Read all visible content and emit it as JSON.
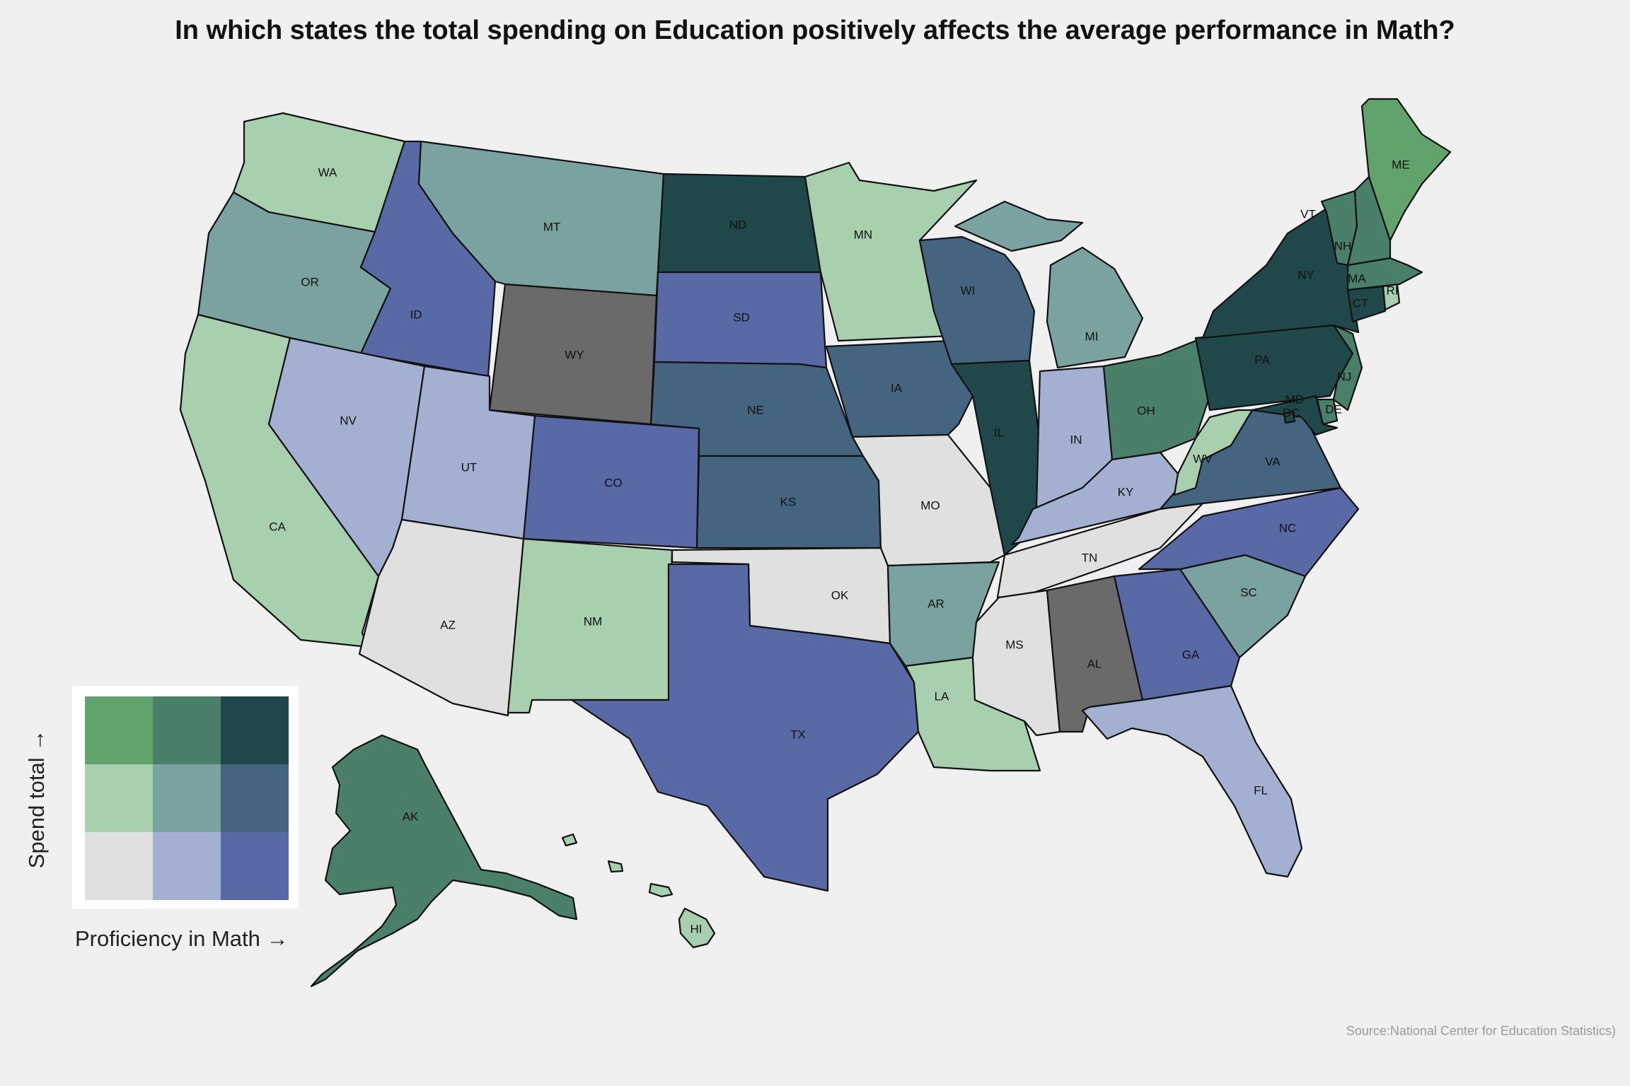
{
  "title": "In which states the total spending on Education positively affects the average performance in Math?",
  "source": "Source:National Center for Education Statistics)",
  "legend": {
    "x_label": "Proficiency in Math →",
    "y_label": "Spend total →",
    "rows": [
      [
        "#62a26c",
        "#4a7f69",
        "#20484a"
      ],
      [
        "#a8cfae",
        "#7aa2a0",
        "#456480"
      ],
      [
        "#e0e0e0",
        "#a4b0d2",
        "#5869a6"
      ]
    ]
  },
  "colors": {
    "hi_low": "#62a26c",
    "hi_mid": "#4a7f69",
    "hi_high": "#20484a",
    "mid_low": "#a8cfae",
    "mid_mid": "#7aa2a0",
    "mid_high": "#456480",
    "low_low": "#e0e0e0",
    "low_mid": "#a4b0d2",
    "low_high": "#5869a6",
    "na": "#6a6a6a"
  },
  "states": [
    {
      "id": "WA",
      "label": "WA",
      "class": "mid_low"
    },
    {
      "id": "OR",
      "label": "OR",
      "class": "mid_mid"
    },
    {
      "id": "CA",
      "label": "CA",
      "class": "mid_low"
    },
    {
      "id": "ID",
      "label": "ID",
      "class": "low_high"
    },
    {
      "id": "NV",
      "label": "NV",
      "class": "low_mid"
    },
    {
      "id": "MT",
      "label": "MT",
      "class": "mid_mid"
    },
    {
      "id": "WY",
      "label": "WY",
      "class": "na"
    },
    {
      "id": "UT",
      "label": "UT",
      "class": "low_mid"
    },
    {
      "id": "AZ",
      "label": "AZ",
      "class": "low_low"
    },
    {
      "id": "CO",
      "label": "CO",
      "class": "low_high"
    },
    {
      "id": "NM",
      "label": "NM",
      "class": "mid_low"
    },
    {
      "id": "ND",
      "label": "ND",
      "class": "hi_high"
    },
    {
      "id": "SD",
      "label": "SD",
      "class": "low_high"
    },
    {
      "id": "NE",
      "label": "NE",
      "class": "mid_high"
    },
    {
      "id": "KS",
      "label": "KS",
      "class": "mid_high"
    },
    {
      "id": "OK",
      "label": "OK",
      "class": "low_low"
    },
    {
      "id": "TX",
      "label": "TX",
      "class": "low_high"
    },
    {
      "id": "MN",
      "label": "MN",
      "class": "mid_low"
    },
    {
      "id": "IA",
      "label": "IA",
      "class": "mid_high"
    },
    {
      "id": "MO",
      "label": "MO",
      "class": "low_low"
    },
    {
      "id": "AR",
      "label": "AR",
      "class": "mid_mid"
    },
    {
      "id": "LA",
      "label": "LA",
      "class": "mid_low"
    },
    {
      "id": "WI",
      "label": "WI",
      "class": "mid_high"
    },
    {
      "id": "IL",
      "label": "IL",
      "class": "hi_high"
    },
    {
      "id": "MI",
      "label": "MI",
      "class": "mid_mid"
    },
    {
      "id": "IN",
      "label": "IN",
      "class": "low_mid"
    },
    {
      "id": "OH",
      "label": "OH",
      "class": "hi_mid"
    },
    {
      "id": "KY",
      "label": "KY",
      "class": "low_mid"
    },
    {
      "id": "TN",
      "label": "TN",
      "class": "low_low"
    },
    {
      "id": "MS",
      "label": "MS",
      "class": "low_low"
    },
    {
      "id": "AL",
      "label": "AL",
      "class": "na"
    },
    {
      "id": "GA",
      "label": "GA",
      "class": "low_high"
    },
    {
      "id": "FL",
      "label": "FL",
      "class": "low_mid"
    },
    {
      "id": "SC",
      "label": "SC",
      "class": "mid_mid"
    },
    {
      "id": "NC",
      "label": "NC",
      "class": "low_high"
    },
    {
      "id": "VA",
      "label": "VA",
      "class": "mid_high"
    },
    {
      "id": "WV",
      "label": "WV",
      "class": "mid_low"
    },
    {
      "id": "PA",
      "label": "PA",
      "class": "hi_high"
    },
    {
      "id": "NY",
      "label": "NY",
      "class": "hi_high"
    },
    {
      "id": "NJ",
      "label": "NJ",
      "class": "hi_mid"
    },
    {
      "id": "DE",
      "label": "DE",
      "class": "hi_mid"
    },
    {
      "id": "MD",
      "label": "MD",
      "class": "hi_high"
    },
    {
      "id": "DC",
      "label": "DC",
      "class": "hi_high"
    },
    {
      "id": "CT",
      "label": "CT",
      "class": "hi_high"
    },
    {
      "id": "RI",
      "label": "RI",
      "class": "mid_low"
    },
    {
      "id": "MA",
      "label": "MA",
      "class": "hi_mid"
    },
    {
      "id": "VT",
      "label": "VT",
      "class": "hi_mid"
    },
    {
      "id": "NH",
      "label": "NH",
      "class": "hi_mid"
    },
    {
      "id": "ME",
      "label": "ME",
      "class": "hi_low"
    },
    {
      "id": "AK",
      "label": "AK",
      "class": "hi_mid"
    },
    {
      "id": "HI",
      "label": "HI",
      "class": "mid_low"
    }
  ]
}
